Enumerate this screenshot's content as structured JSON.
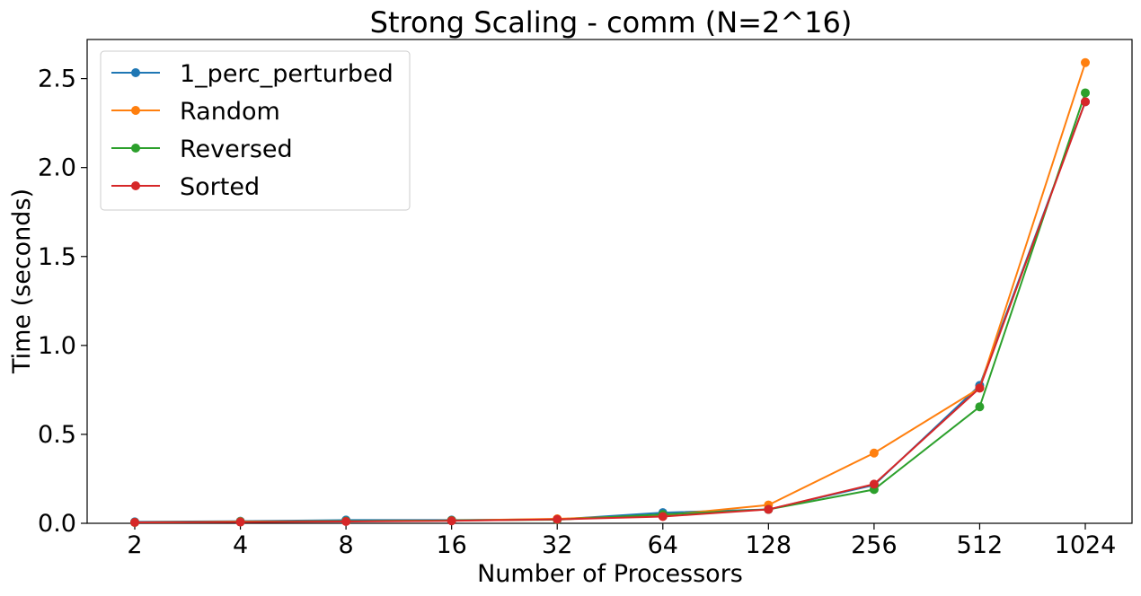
{
  "chart_data": {
    "type": "line",
    "title": "Strong Scaling - comm (N=2^16)",
    "xlabel": "Number of Processors",
    "ylabel": "Time (seconds)",
    "categories": [
      "2",
      "4",
      "8",
      "16",
      "32",
      "64",
      "128",
      "256",
      "512",
      "1024"
    ],
    "ylim": [
      0,
      2.72
    ],
    "yticks": [
      "0.0",
      "0.5",
      "1.0",
      "1.5",
      "2.0",
      "2.5"
    ],
    "ytick_values": [
      0,
      0.5,
      1.0,
      1.5,
      2.0,
      2.5
    ],
    "grid": false,
    "legend_position": "top-left",
    "series": [
      {
        "name": "1_perc_perturbed",
        "color": "#1f77b4",
        "values": [
          0.008,
          0.012,
          0.018,
          0.018,
          0.022,
          0.06,
          0.078,
          0.215,
          0.775,
          2.37
        ]
      },
      {
        "name": "Random",
        "color": "#ff7f0e",
        "values": [
          0.005,
          0.01,
          0.012,
          0.016,
          0.025,
          0.045,
          0.103,
          0.395,
          0.76,
          2.59
        ]
      },
      {
        "name": "Reversed",
        "color": "#2ca02c",
        "values": [
          0.005,
          0.008,
          0.012,
          0.016,
          0.02,
          0.05,
          0.078,
          0.19,
          0.655,
          2.42
        ]
      },
      {
        "name": "Sorted",
        "color": "#d62728",
        "values": [
          0.005,
          0.007,
          0.01,
          0.014,
          0.022,
          0.038,
          0.078,
          0.22,
          0.76,
          2.37
        ]
      }
    ]
  }
}
